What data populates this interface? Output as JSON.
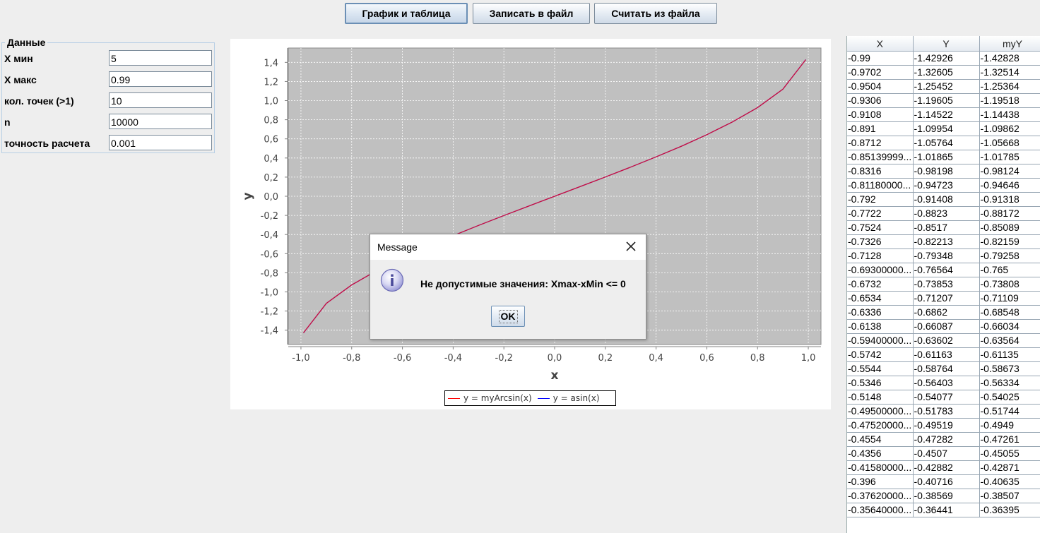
{
  "toolbar": {
    "chart_table": "График и таблица",
    "write_file": "Записать в файл",
    "read_file": "Считать из файла"
  },
  "data_panel": {
    "title": "Данные",
    "fields": [
      {
        "label": "X мин",
        "value": "5"
      },
      {
        "label": "X макс",
        "value": "0.99"
      },
      {
        "label": "кол. точек (>1)",
        "value": "10"
      },
      {
        "label": "n",
        "value": "10000"
      },
      {
        "label": "точность расчета",
        "value": "0.001"
      }
    ]
  },
  "chart_data": {
    "type": "line",
    "xlabel": "x",
    "ylabel": "y",
    "xlim": [
      -1.05,
      1.05
    ],
    "ylim": [
      -1.55,
      1.55
    ],
    "x_ticks": [
      "-1,0",
      "-0,8",
      "-0,6",
      "-0,4",
      "-0,2",
      "0,0",
      "0,2",
      "0,4",
      "0,6",
      "0,8",
      "1,0"
    ],
    "y_ticks": [
      "1,4",
      "1,2",
      "1,0",
      "0,8",
      "0,6",
      "0,4",
      "0,2",
      "0,0",
      "-0,2",
      "-0,4",
      "-0,6",
      "-0,8",
      "-1,0",
      "-1,2",
      "-1,4"
    ],
    "grid": true,
    "legend_position": "bottom",
    "series": [
      {
        "name": "y = myArcsin(x)",
        "color": "#ff0000",
        "x": [
          -0.99,
          -0.9,
          -0.8,
          -0.7,
          -0.6,
          -0.5,
          -0.4,
          -0.3,
          -0.2,
          -0.1,
          0.0,
          0.1,
          0.2,
          0.3,
          0.4,
          0.5,
          0.6,
          0.7,
          0.8,
          0.9,
          0.99
        ],
        "y": [
          -1.4283,
          -1.1198,
          -0.9273,
          -0.7754,
          -0.6435,
          -0.5236,
          -0.4115,
          -0.3047,
          -0.2014,
          -0.1002,
          0.0,
          0.1002,
          0.2014,
          0.3047,
          0.4115,
          0.5236,
          0.6435,
          0.7754,
          0.9273,
          1.1198,
          1.4283
        ]
      },
      {
        "name": "y = asin(x)",
        "color": "#0000ff",
        "x": [
          -0.99,
          -0.9,
          -0.8,
          -0.7,
          -0.6,
          -0.5,
          -0.4,
          -0.3,
          -0.2,
          -0.1,
          0.0,
          0.1,
          0.2,
          0.3,
          0.4,
          0.5,
          0.6,
          0.7,
          0.8,
          0.9,
          0.99
        ],
        "y": [
          -1.4293,
          -1.1198,
          -0.9273,
          -0.7754,
          -0.6435,
          -0.5236,
          -0.4115,
          -0.3047,
          -0.2014,
          -0.1002,
          0.0,
          0.1002,
          0.2014,
          0.3047,
          0.4115,
          0.5236,
          0.6435,
          0.7754,
          0.9273,
          1.1198,
          1.4293
        ]
      }
    ]
  },
  "colors": {
    "plot_background": "#c0c0c0",
    "curve_visible": "#c0103a"
  },
  "dialog": {
    "title": "Message",
    "message": "Не допустимые значения: Xmax-xMin <= 0",
    "ok": "OK",
    "icon": "info-icon"
  },
  "table": {
    "columns": [
      "X",
      "Y",
      "myY"
    ],
    "rows": [
      [
        "-0.99",
        "-1.42926",
        "-1.42828"
      ],
      [
        "-0.9702",
        "-1.32605",
        "-1.32514"
      ],
      [
        "-0.9504",
        "-1.25452",
        "-1.25364"
      ],
      [
        "-0.9306",
        "-1.19605",
        "-1.19518"
      ],
      [
        "-0.9108",
        "-1.14522",
        "-1.14438"
      ],
      [
        "-0.891",
        "-1.09954",
        "-1.09862"
      ],
      [
        "-0.8712",
        "-1.05764",
        "-1.05668"
      ],
      [
        "-0.85139999...",
        "-1.01865",
        "-1.01785"
      ],
      [
        "-0.8316",
        "-0.98198",
        "-0.98124"
      ],
      [
        "-0.81180000...",
        "-0.94723",
        "-0.94646"
      ],
      [
        "-0.792",
        "-0.91408",
        "-0.91318"
      ],
      [
        "-0.7722",
        "-0.8823",
        "-0.88172"
      ],
      [
        "-0.7524",
        "-0.8517",
        "-0.85089"
      ],
      [
        "-0.7326",
        "-0.82213",
        "-0.82159"
      ],
      [
        "-0.7128",
        "-0.79348",
        "-0.79258"
      ],
      [
        "-0.69300000...",
        "-0.76564",
        "-0.765"
      ],
      [
        "-0.6732",
        "-0.73853",
        "-0.73808"
      ],
      [
        "-0.6534",
        "-0.71207",
        "-0.71109"
      ],
      [
        "-0.6336",
        "-0.6862",
        "-0.68548"
      ],
      [
        "-0.6138",
        "-0.66087",
        "-0.66034"
      ],
      [
        "-0.59400000...",
        "-0.63602",
        "-0.63564"
      ],
      [
        "-0.5742",
        "-0.61163",
        "-0.61135"
      ],
      [
        "-0.5544",
        "-0.58764",
        "-0.58673"
      ],
      [
        "-0.5346",
        "-0.56403",
        "-0.56334"
      ],
      [
        "-0.5148",
        "-0.54077",
        "-0.54025"
      ],
      [
        "-0.49500000...",
        "-0.51783",
        "-0.51744"
      ],
      [
        "-0.47520000...",
        "-0.49519",
        "-0.4949"
      ],
      [
        "-0.4554",
        "-0.47282",
        "-0.47261"
      ],
      [
        "-0.4356",
        "-0.4507",
        "-0.45055"
      ],
      [
        "-0.41580000...",
        "-0.42882",
        "-0.42871"
      ],
      [
        "-0.396",
        "-0.40716",
        "-0.40635"
      ],
      [
        "-0.37620000...",
        "-0.38569",
        "-0.38507"
      ],
      [
        "-0.35640000...",
        "-0.36441",
        "-0.36395"
      ]
    ]
  }
}
